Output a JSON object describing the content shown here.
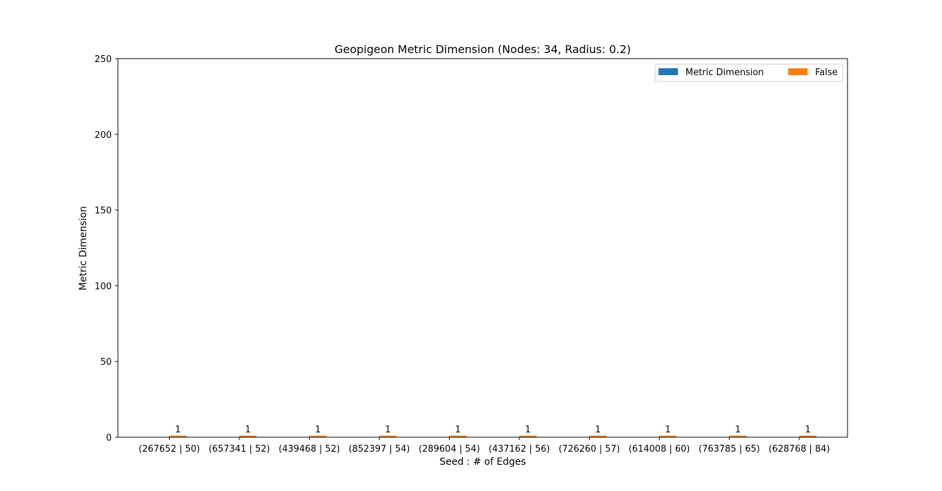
{
  "chart_data": {
    "type": "bar",
    "title": "Geopigeon Metric Dimension (Nodes: 34, Radius: 0.2)",
    "xlabel": "Seed : # of Edges",
    "ylabel": "Metric Dimension",
    "categories": [
      "(267652 | 50)",
      "(657341 | 52)",
      "(439468 | 52)",
      "(852397 | 54)",
      "(289604 | 54)",
      "(437162 | 56)",
      "(726260 | 57)",
      "(614008 | 60)",
      "(763785 | 65)",
      "(628768 | 84)"
    ],
    "series": [
      {
        "name": "Metric Dimension",
        "color": "#1f77b4",
        "values": [
          0,
          0,
          0,
          0,
          0,
          0,
          0,
          0,
          0,
          0
        ]
      },
      {
        "name": "False",
        "color": "#ff7f0e",
        "values": [
          1,
          1,
          1,
          1,
          1,
          1,
          1,
          1,
          1,
          1
        ]
      }
    ],
    "bar_labels": [
      "1",
      "1",
      "1",
      "1",
      "1",
      "1",
      "1",
      "1",
      "1",
      "1"
    ],
    "ylim": [
      0,
      250
    ],
    "yticks": [
      0,
      50,
      100,
      150,
      200,
      250
    ],
    "grid": false,
    "legend_position": "top-right"
  }
}
